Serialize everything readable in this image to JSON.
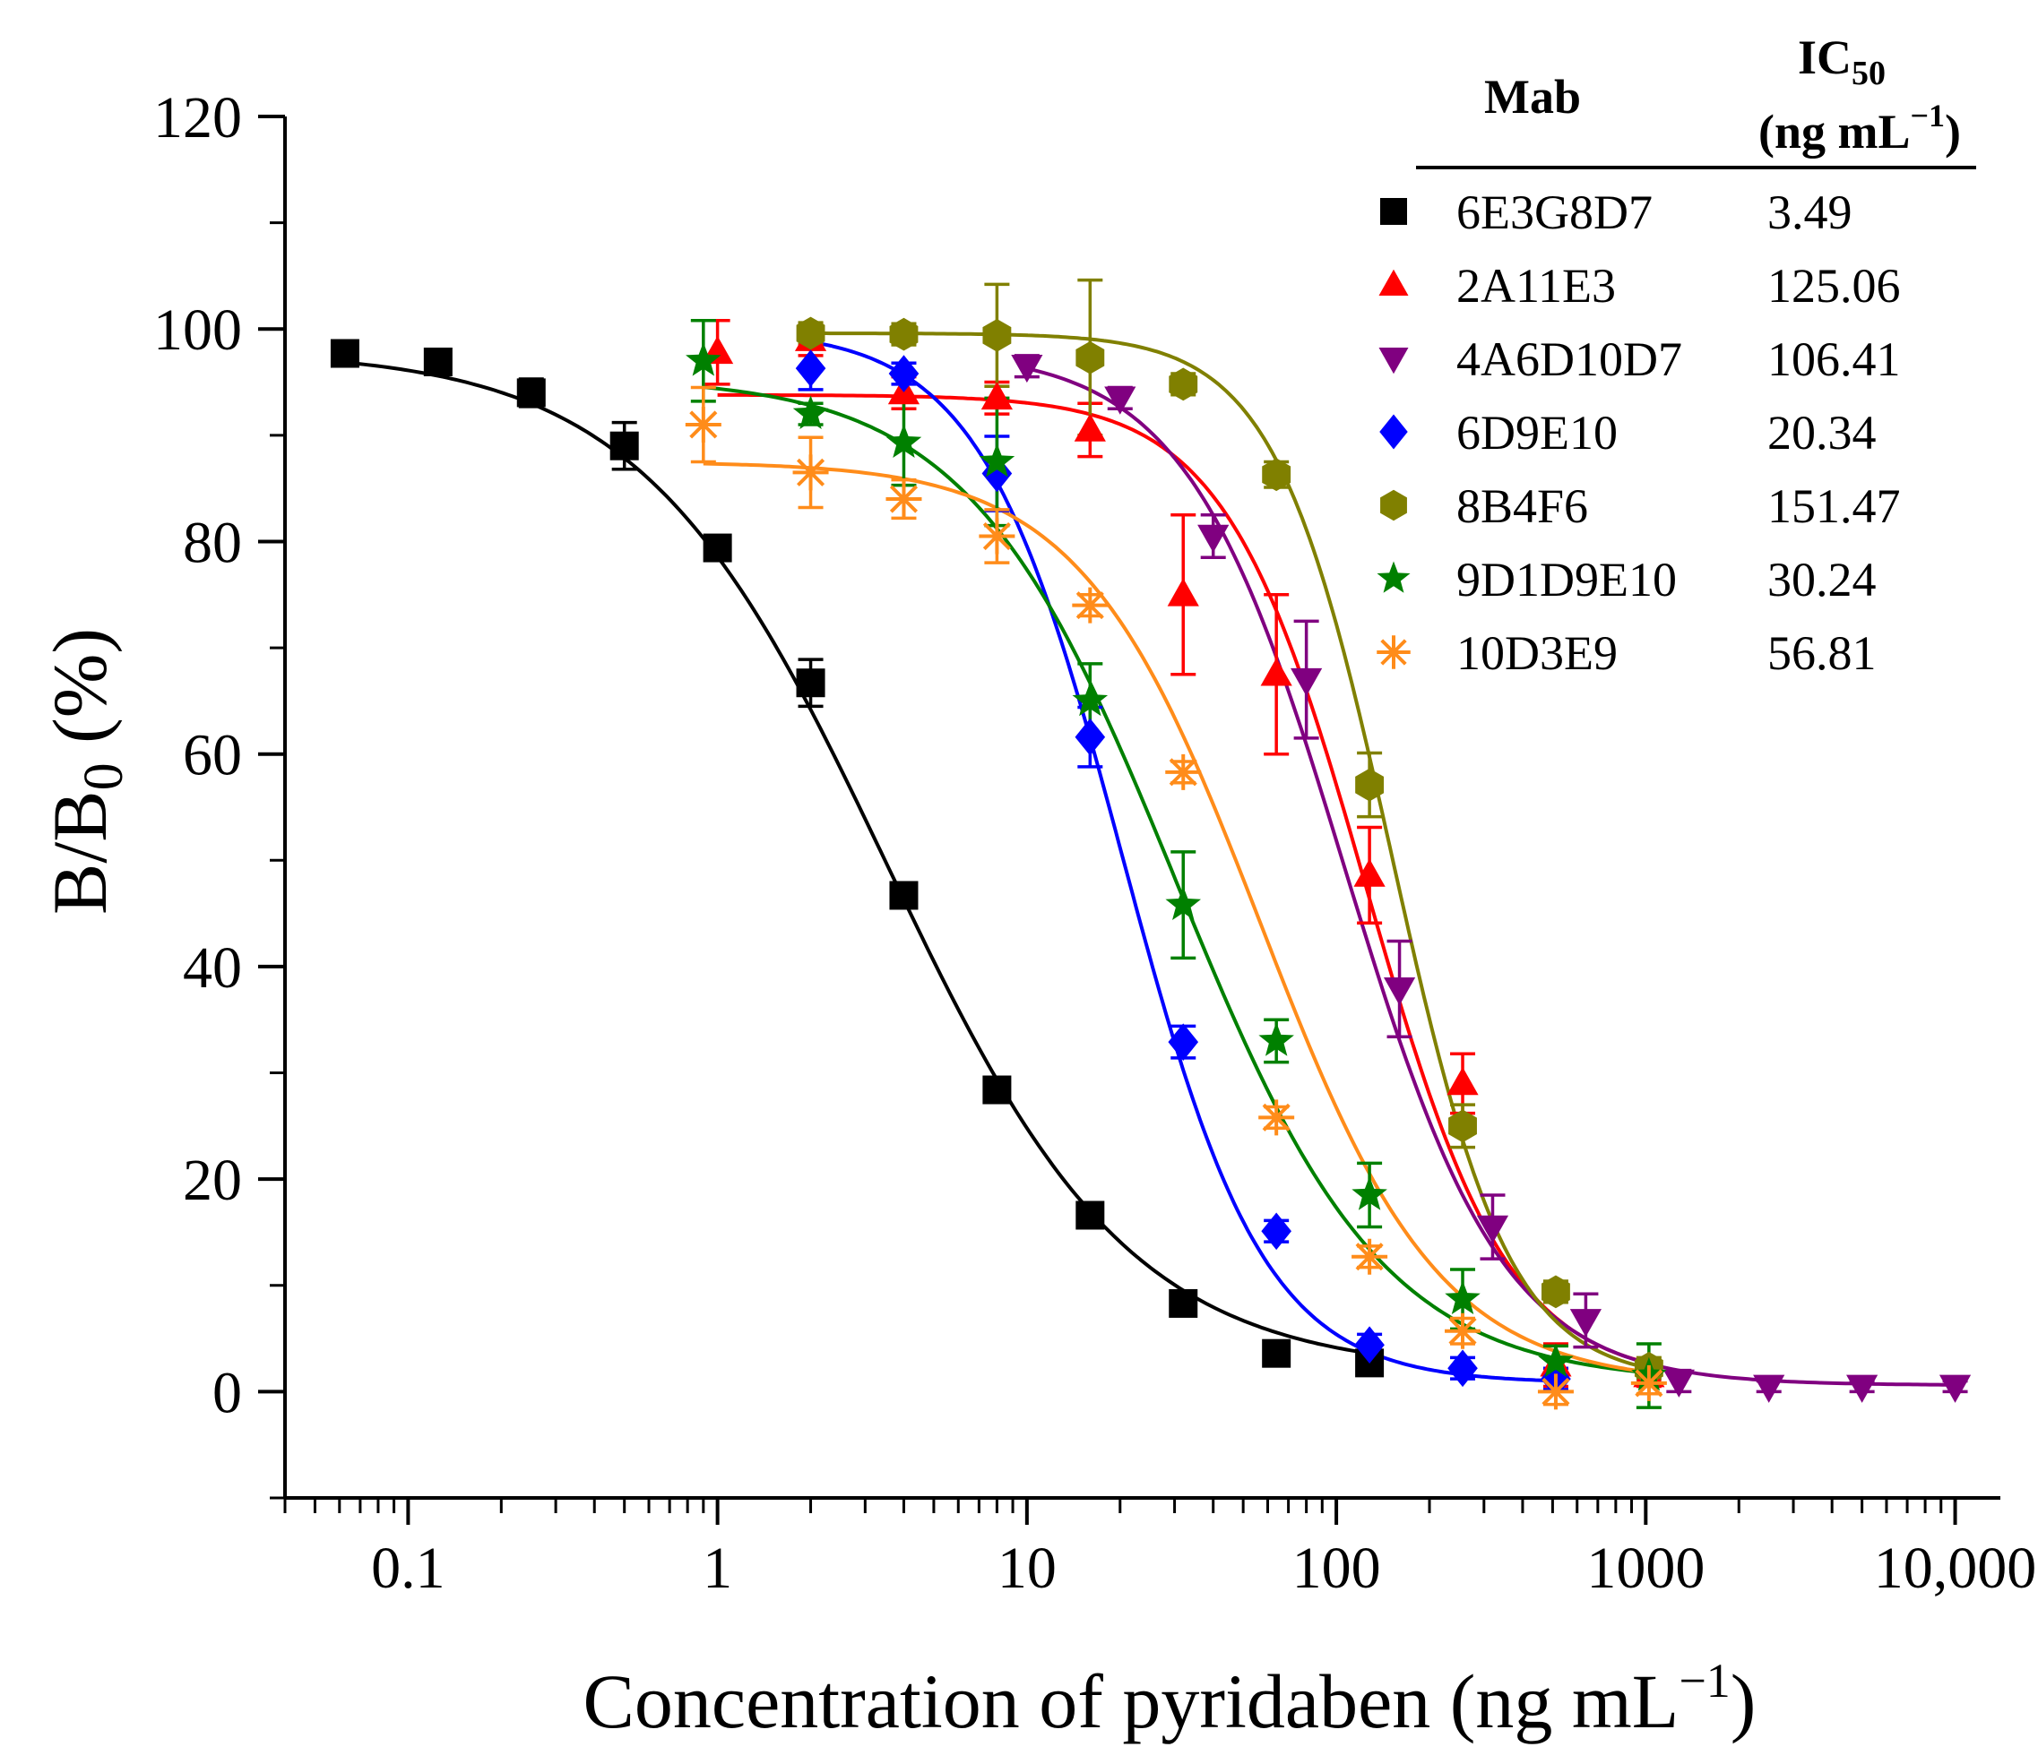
{
  "chart_data": {
    "type": "scatter",
    "title": "",
    "xlabel": "Concentration of pyridaben (ng mL",
    "xlabel_superscript": "−1",
    "xlabel_close": ")",
    "ylabel": "B/B",
    "ylabel_subscript": "0",
    "ylabel_suffix": " (%)",
    "xscale": "log",
    "xlim": [
      0.04,
      14000
    ],
    "ylim": [
      -10,
      120
    ],
    "x_ticks": [
      {
        "value": 0.1,
        "label": "0.1"
      },
      {
        "value": 1,
        "label": "1"
      },
      {
        "value": 10,
        "label": "10"
      },
      {
        "value": 100,
        "label": "100"
      },
      {
        "value": 1000,
        "label": "1000"
      },
      {
        "value": 10000,
        "label": "10,000"
      }
    ],
    "y_ticks": [
      {
        "value": 0,
        "label": "0"
      },
      {
        "value": 20,
        "label": "20"
      },
      {
        "value": 40,
        "label": "40"
      },
      {
        "value": 60,
        "label": "60"
      },
      {
        "value": 80,
        "label": "80"
      },
      {
        "value": 100,
        "label": "100"
      },
      {
        "value": 120,
        "label": "120"
      }
    ],
    "legend": {
      "position": "top-right",
      "header_mab": "Mab",
      "header_ic": "IC",
      "header_ic_sub": "50",
      "header_unit": "(ng mL",
      "header_unit_sup": "−1",
      "header_unit_close": ")"
    },
    "series": [
      {
        "name": "6E3G8D7",
        "ic50": "3.49",
        "color": "#000000",
        "marker": "square",
        "fit": {
          "top": 98,
          "bottom": 1.8,
          "ic50": 3.49,
          "hill": 1.1
        },
        "points": [
          {
            "x": 0.0625,
            "y": 97.7,
            "err": 1.2
          },
          {
            "x": 0.125,
            "y": 96.9,
            "err": 1.2
          },
          {
            "x": 0.25,
            "y": 94.0,
            "err": 1.3
          },
          {
            "x": 0.5,
            "y": 89.0,
            "err": 2.2
          },
          {
            "x": 1,
            "y": 79.4,
            "err": 1.0
          },
          {
            "x": 2,
            "y": 66.7,
            "err": 2.2
          },
          {
            "x": 4,
            "y": 46.7,
            "err": 1.0
          },
          {
            "x": 8,
            "y": 28.4,
            "err": 1.0
          },
          {
            "x": 16,
            "y": 16.6,
            "err": 1.0
          },
          {
            "x": 32,
            "y": 8.3,
            "err": 1.0
          },
          {
            "x": 64,
            "y": 3.6,
            "err": 1.0
          },
          {
            "x": 128,
            "y": 2.7,
            "err": 1.0
          }
        ]
      },
      {
        "name": "2A11E3",
        "ic50": "125.06",
        "color": "#ff0000",
        "marker": "triangle-up",
        "fit": {
          "top": 93.8,
          "bottom": 1.0,
          "ic50": 125.06,
          "hill": 1.9
        },
        "points": [
          {
            "x": 1,
            "y": 97.8,
            "err": 3.0
          },
          {
            "x": 2,
            "y": 99.0,
            "err": 1.5
          },
          {
            "x": 4,
            "y": 94.0,
            "err": 1.5
          },
          {
            "x": 8,
            "y": 93.5,
            "err": 1.5
          },
          {
            "x": 16,
            "y": 90.5,
            "err": 2.5
          },
          {
            "x": 32,
            "y": 75.0,
            "err": 7.5
          },
          {
            "x": 64,
            "y": 67.5,
            "err": 7.5
          },
          {
            "x": 128,
            "y": 48.6,
            "err": 4.5
          },
          {
            "x": 256,
            "y": 29.0,
            "err": 2.8
          },
          {
            "x": 512,
            "y": 2.5,
            "err": 2.0
          },
          {
            "x": 1024,
            "y": 1.5,
            "err": 1.0
          }
        ]
      },
      {
        "name": "4A6D10D7",
        "ic50": "106.41",
        "color": "#800080",
        "marker": "triangle-down",
        "fit": {
          "top": 98,
          "bottom": 0.6,
          "ic50": 106.41,
          "hill": 1.7
        },
        "points": [
          {
            "x": 10,
            "y": 96.5,
            "err": 1.0
          },
          {
            "x": 20,
            "y": 93.5,
            "err": 1.0
          },
          {
            "x": 40,
            "y": 80.5,
            "err": 2.0
          },
          {
            "x": 80,
            "y": 67.0,
            "err": 5.5
          },
          {
            "x": 160,
            "y": 37.9,
            "err": 4.5
          },
          {
            "x": 320,
            "y": 15.5,
            "err": 3.0
          },
          {
            "x": 640,
            "y": 6.7,
            "err": 2.5
          },
          {
            "x": 1280,
            "y": 1.0,
            "err": 1.0
          },
          {
            "x": 2500,
            "y": 0.5,
            "err": 0.5
          },
          {
            "x": 5000,
            "y": 0.5,
            "err": 0.5
          },
          {
            "x": 10000,
            "y": 0.5,
            "err": 0.5
          }
        ]
      },
      {
        "name": "6D9E10",
        "ic50": "20.34",
        "color": "#0000ff",
        "marker": "diamond",
        "fit": {
          "top": 100,
          "bottom": 0.8,
          "ic50": 20.34,
          "hill": 1.9
        },
        "points": [
          {
            "x": 2,
            "y": 96.3,
            "err": 2.0
          },
          {
            "x": 4,
            "y": 95.8,
            "err": 1.0
          },
          {
            "x": 8,
            "y": 86.4,
            "err": 3.5
          },
          {
            "x": 16,
            "y": 61.6,
            "err": 2.8
          },
          {
            "x": 32,
            "y": 32.9,
            "err": 1.5
          },
          {
            "x": 64,
            "y": 15.1,
            "err": 1.0
          },
          {
            "x": 128,
            "y": 4.4,
            "err": 1.0
          },
          {
            "x": 256,
            "y": 2.2,
            "err": 1.0
          },
          {
            "x": 512,
            "y": 1.2,
            "err": 1.0
          }
        ]
      },
      {
        "name": "8B4F6",
        "ic50": "151.47",
        "color": "#808000",
        "marker": "hexagon",
        "fit": {
          "top": 99.6,
          "bottom": 1.0,
          "ic50": 151.47,
          "hill": 2.3
        },
        "points": [
          {
            "x": 2,
            "y": 99.6,
            "err": 1.0
          },
          {
            "x": 4,
            "y": 99.5,
            "err": 1.0
          },
          {
            "x": 8,
            "y": 99.4,
            "err": 4.8
          },
          {
            "x": 16,
            "y": 97.3,
            "err": 7.3
          },
          {
            "x": 32,
            "y": 94.8,
            "err": 1.0
          },
          {
            "x": 64,
            "y": 86.3,
            "err": 1.2
          },
          {
            "x": 128,
            "y": 57.1,
            "err": 3.0
          },
          {
            "x": 256,
            "y": 25.0,
            "err": 2.0
          },
          {
            "x": 512,
            "y": 9.4,
            "err": 1.0
          },
          {
            "x": 1024,
            "y": 2.2,
            "err": 1.0
          }
        ]
      },
      {
        "name": "9D1D9E10",
        "ic50": "30.24",
        "color": "#008000",
        "marker": "star",
        "fit": {
          "top": 95.5,
          "bottom": 0.8,
          "ic50": 30.24,
          "hill": 1.3
        },
        "points": [
          {
            "x": 0.9,
            "y": 97.0,
            "err": 3.8
          },
          {
            "x": 2,
            "y": 92.0,
            "err": 1.0
          },
          {
            "x": 4,
            "y": 89.3,
            "err": 4.0
          },
          {
            "x": 8,
            "y": 87.5,
            "err": 6.0
          },
          {
            "x": 16,
            "y": 65.0,
            "err": 3.5
          },
          {
            "x": 32,
            "y": 45.8,
            "err": 5.0
          },
          {
            "x": 64,
            "y": 33.0,
            "err": 2.0
          },
          {
            "x": 128,
            "y": 18.5,
            "err": 3.0
          },
          {
            "x": 256,
            "y": 8.7,
            "err": 2.8
          },
          {
            "x": 512,
            "y": 2.8,
            "err": 1.5
          },
          {
            "x": 1024,
            "y": 1.5,
            "err": 3.0
          }
        ]
      },
      {
        "name": "10D3E9",
        "ic50": "56.81",
        "color": "#ff8c1a",
        "marker": "asterisk",
        "fit": {
          "top": 87.5,
          "bottom": 0.7,
          "ic50": 56.81,
          "hill": 1.5
        },
        "points": [
          {
            "x": 0.9,
            "y": 91.0,
            "err": 3.5
          },
          {
            "x": 2,
            "y": 86.5,
            "err": 3.3
          },
          {
            "x": 4,
            "y": 84.0,
            "err": 1.8
          },
          {
            "x": 8,
            "y": 80.5,
            "err": 2.5
          },
          {
            "x": 16,
            "y": 74.0,
            "err": 1.0
          },
          {
            "x": 32,
            "y": 58.3,
            "err": 1.0
          },
          {
            "x": 64,
            "y": 25.8,
            "err": 1.0
          },
          {
            "x": 128,
            "y": 12.7,
            "err": 1.0
          },
          {
            "x": 256,
            "y": 5.7,
            "err": 1.2
          },
          {
            "x": 512,
            "y": 0.0,
            "err": 1.2
          },
          {
            "x": 1024,
            "y": 0.8,
            "err": 1.0
          }
        ]
      }
    ]
  }
}
